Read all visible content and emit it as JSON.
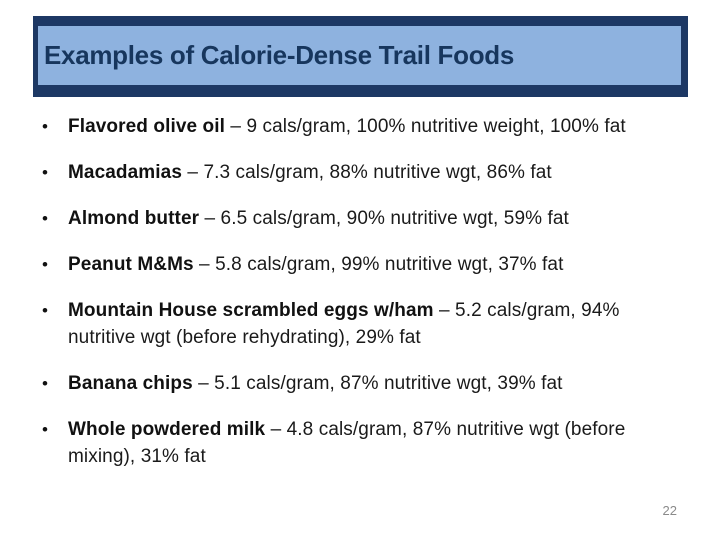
{
  "slide": {
    "title": "Examples of Calorie-Dense Trail Foods",
    "bullet_char": "•",
    "page_number": "22",
    "colors": {
      "title_fill": "#8EB2DF",
      "title_border": "#1D3864",
      "title_text": "#17365D",
      "body_text": "#1A1A1A",
      "page_number_text": "#8A8A8A"
    },
    "bullets": [
      {
        "bold": "Flavored olive oil",
        "rest": " – 9 cals/gram, 100% nutritive weight, 100% fat"
      },
      {
        "bold": "Macadamias",
        "rest": " – 7.3 cals/gram, 88% nutritive wgt, 86% fat"
      },
      {
        "bold": "Almond butter",
        "rest": " – 6.5 cals/gram, 90% nutritive wgt, 59% fat"
      },
      {
        "bold": "Peanut M&Ms",
        "rest": " – 5.8 cals/gram, 99% nutritive wgt, 37% fat"
      },
      {
        "bold": "Mountain House scrambled eggs w/ham",
        "rest": " – 5.2 cals/gram, 94%",
        "rest2": "nutritive wgt (before rehydrating), 29% fat"
      },
      {
        "bold": "Banana chips",
        "rest": " – 5.1 cals/gram, 87% nutritive wgt, 39% fat"
      },
      {
        "bold": "Whole powdered milk",
        "rest": " – 4.8 cals/gram, 87% nutritive wgt (before",
        "rest2": "mixing), 31% fat"
      }
    ]
  }
}
